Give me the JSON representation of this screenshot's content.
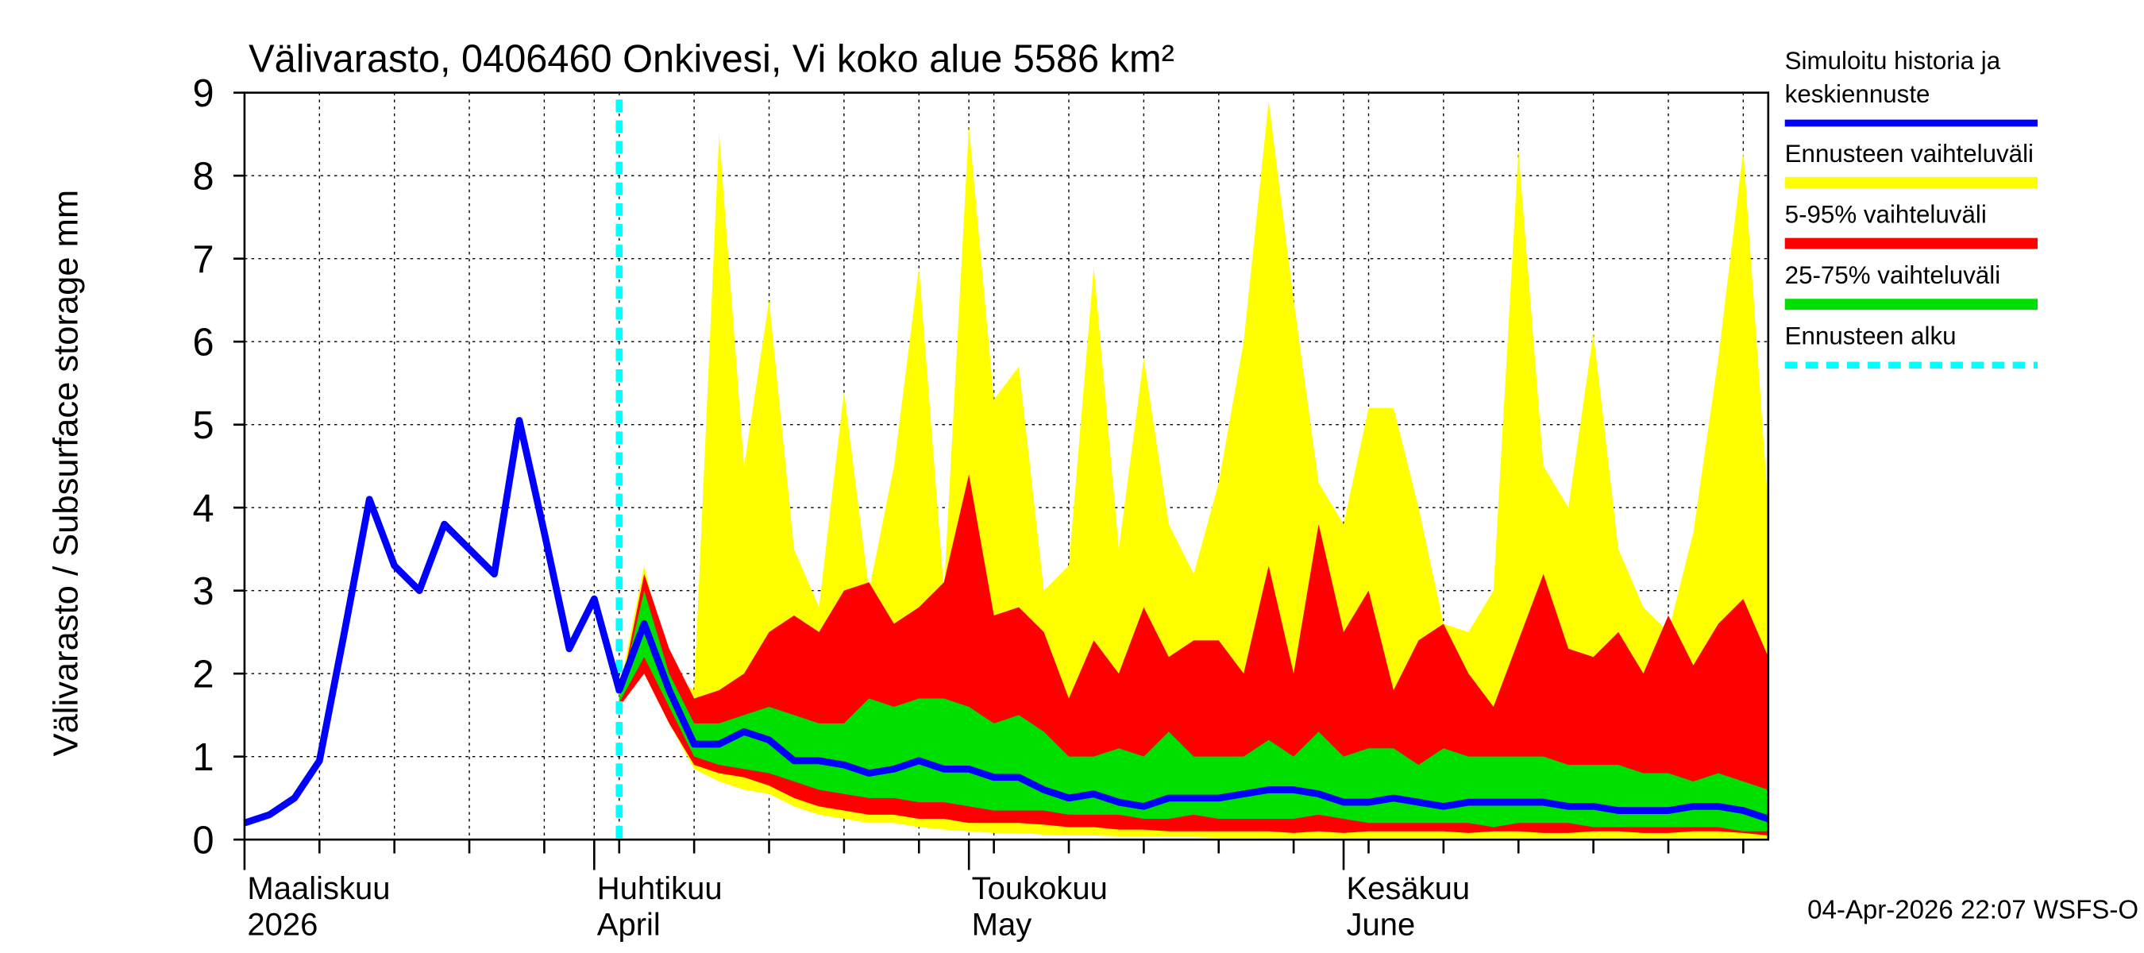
{
  "chart_data": {
    "type": "line",
    "title": "Välivarasto, 0406460 Onkivesi, Vi koko alue 5586 km²",
    "y_label": "Välivarasto / Subsurface storage  mm",
    "footer": "04-Apr-2026 22:07 WSFS-O",
    "categories": [
      [
        "Maaliskuu",
        "2026"
      ],
      null,
      null,
      null,
      null,
      null,
      null,
      null,
      null,
      null,
      null,
      null,
      null,
      null,
      [
        "Huhtikuu",
        "April"
      ],
      null,
      null,
      null,
      null,
      null,
      null,
      null,
      null,
      null,
      null,
      null,
      null,
      null,
      null,
      [
        "Toukokuu",
        "May"
      ],
      null,
      null,
      null,
      null,
      null,
      null,
      null,
      null,
      null,
      null,
      null,
      null,
      null,
      null,
      [
        "Kesäkuu",
        "June"
      ],
      null,
      null,
      null,
      null,
      null,
      null,
      null,
      null,
      null,
      null,
      null,
      null,
      null,
      null,
      null,
      null,
      null
    ],
    "ylim": [
      0,
      9
    ],
    "yticks": [
      0,
      1,
      2,
      3,
      4,
      5,
      6,
      7,
      8,
      9
    ],
    "grid": true,
    "series": [
      {
        "name": [
          "Simuloitu historia ja",
          "keskiennuste"
        ],
        "color": "#0000ff",
        "values": [
          0.2,
          0.3,
          0.5,
          0.95,
          2.5,
          4.1,
          3.3,
          3.0,
          3.8,
          3.5,
          3.2,
          5.05,
          3.7,
          2.3,
          2.9,
          1.8,
          2.6,
          1.8,
          1.15,
          1.15,
          1.3,
          1.2,
          0.95,
          0.95,
          0.9,
          0.8,
          0.85,
          0.95,
          0.85,
          0.85,
          0.75,
          0.75,
          0.6,
          0.5,
          0.55,
          0.45,
          0.4,
          0.5,
          0.5,
          0.5,
          0.55,
          0.6,
          0.6,
          0.55,
          0.45,
          0.45,
          0.5,
          0.45,
          0.4,
          0.45,
          0.45,
          0.45,
          0.45,
          0.4,
          0.4,
          0.35,
          0.35,
          0.35,
          0.4,
          0.4,
          0.35,
          0.25
        ]
      }
    ],
    "bands": [
      {
        "name": "Ennusteen vaihteluväli",
        "color": "#ffff00",
        "high": [
          null,
          null,
          null,
          null,
          null,
          null,
          null,
          null,
          null,
          null,
          null,
          null,
          null,
          null,
          null,
          1.8,
          3.3,
          2.0,
          1.8,
          8.5,
          4.5,
          6.5,
          3.5,
          2.8,
          5.4,
          3.0,
          4.5,
          6.9,
          3.0,
          8.6,
          5.3,
          5.7,
          3.0,
          3.3,
          6.9,
          3.5,
          5.8,
          3.8,
          3.2,
          4.3,
          6.0,
          8.9,
          6.5,
          4.3,
          3.8,
          5.2,
          5.2,
          4.0,
          2.6,
          2.5,
          3.0,
          8.3,
          4.5,
          4.0,
          6.1,
          3.5,
          2.8,
          2.5,
          3.7,
          5.8,
          8.3,
          4.0
        ],
        "low": [
          null,
          null,
          null,
          null,
          null,
          null,
          null,
          null,
          null,
          null,
          null,
          null,
          null,
          null,
          null,
          1.6,
          2.0,
          1.4,
          0.85,
          0.7,
          0.6,
          0.55,
          0.4,
          0.3,
          0.25,
          0.2,
          0.2,
          0.15,
          0.12,
          0.1,
          0.08,
          0.08,
          0.06,
          0.05,
          0.05,
          0.04,
          0.04,
          0.03,
          0.03,
          0.02,
          0.02,
          0.02,
          0.02,
          0.02,
          0.02,
          0.02,
          0.02,
          0.02,
          0.02,
          0.02,
          0.02,
          0.02,
          0.02,
          0.02,
          0.02,
          0.02,
          0.02,
          0.02,
          0.02,
          0.02,
          0.02,
          0.02
        ]
      },
      {
        "name": "5-95% vaihteluväli",
        "color": "#ff0000",
        "high": [
          null,
          null,
          null,
          null,
          null,
          null,
          null,
          null,
          null,
          null,
          null,
          null,
          null,
          null,
          null,
          1.7,
          3.2,
          2.3,
          1.7,
          1.8,
          2.0,
          2.5,
          2.7,
          2.5,
          3.0,
          3.1,
          2.6,
          2.8,
          3.1,
          4.4,
          2.7,
          2.8,
          2.5,
          1.7,
          2.4,
          2.0,
          2.8,
          2.2,
          2.4,
          2.4,
          2.0,
          3.3,
          2.0,
          3.8,
          2.5,
          3.0,
          1.8,
          2.4,
          2.6,
          2.0,
          1.6,
          2.4,
          3.2,
          2.3,
          2.2,
          2.5,
          2.0,
          2.7,
          2.1,
          2.6,
          2.9,
          2.2
        ],
        "low": [
          null,
          null,
          null,
          null,
          null,
          null,
          null,
          null,
          null,
          null,
          null,
          null,
          null,
          null,
          null,
          1.6,
          2.0,
          1.4,
          0.9,
          0.8,
          0.75,
          0.65,
          0.5,
          0.4,
          0.35,
          0.3,
          0.3,
          0.25,
          0.25,
          0.2,
          0.2,
          0.2,
          0.18,
          0.15,
          0.15,
          0.12,
          0.12,
          0.1,
          0.1,
          0.1,
          0.1,
          0.1,
          0.08,
          0.1,
          0.08,
          0.1,
          0.1,
          0.1,
          0.1,
          0.08,
          0.1,
          0.1,
          0.08,
          0.08,
          0.1,
          0.1,
          0.08,
          0.08,
          0.1,
          0.1,
          0.08,
          0.05
        ]
      },
      {
        "name": "25-75% vaihteluväli",
        "color": "#00e000",
        "high": [
          null,
          null,
          null,
          null,
          null,
          null,
          null,
          null,
          null,
          null,
          null,
          null,
          null,
          null,
          null,
          1.7,
          3.0,
          2.0,
          1.4,
          1.4,
          1.5,
          1.6,
          1.5,
          1.4,
          1.4,
          1.7,
          1.6,
          1.7,
          1.7,
          1.6,
          1.4,
          1.5,
          1.3,
          1.0,
          1.0,
          1.1,
          1.0,
          1.3,
          1.0,
          1.0,
          1.0,
          1.2,
          1.0,
          1.3,
          1.0,
          1.1,
          1.1,
          0.9,
          1.1,
          1.0,
          1.0,
          1.0,
          1.0,
          0.9,
          0.9,
          0.9,
          0.8,
          0.8,
          0.7,
          0.8,
          0.7,
          0.6
        ],
        "low": [
          null,
          null,
          null,
          null,
          null,
          null,
          null,
          null,
          null,
          null,
          null,
          null,
          null,
          null,
          null,
          1.65,
          2.2,
          1.6,
          1.0,
          0.9,
          0.85,
          0.8,
          0.7,
          0.6,
          0.55,
          0.5,
          0.5,
          0.45,
          0.45,
          0.4,
          0.35,
          0.35,
          0.35,
          0.3,
          0.3,
          0.3,
          0.25,
          0.25,
          0.3,
          0.25,
          0.25,
          0.25,
          0.25,
          0.3,
          0.25,
          0.2,
          0.2,
          0.2,
          0.2,
          0.2,
          0.15,
          0.2,
          0.2,
          0.2,
          0.15,
          0.15,
          0.15,
          0.15,
          0.15,
          0.15,
          0.1,
          0.1
        ]
      }
    ],
    "markers": [
      {
        "name": "Ennusteen alku",
        "color": "#00ffff"
      }
    ]
  }
}
